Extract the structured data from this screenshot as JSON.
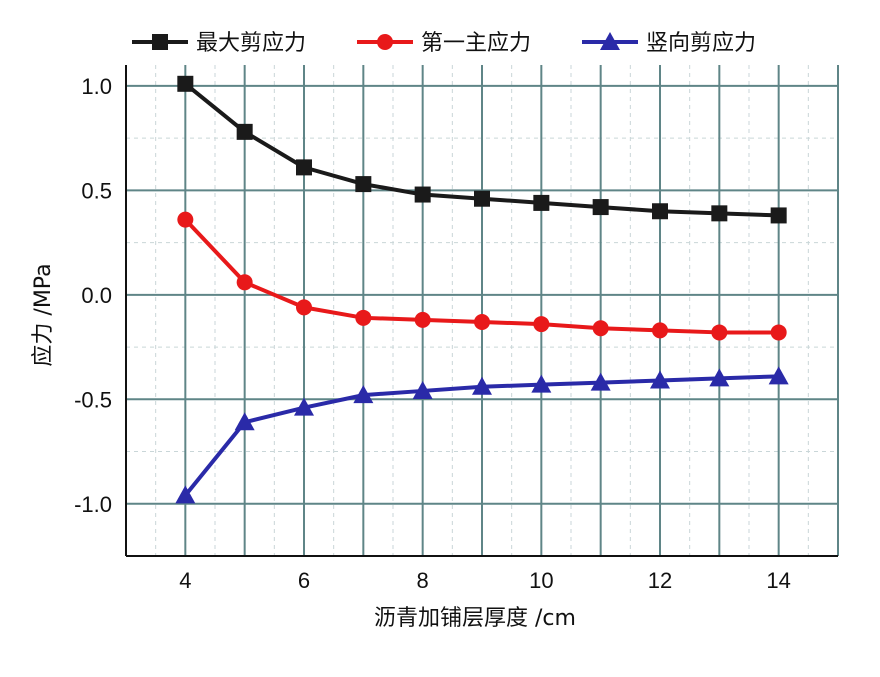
{
  "chart_data": {
    "type": "line",
    "x": [
      4,
      5,
      6,
      7,
      8,
      9,
      10,
      11,
      12,
      13,
      14
    ],
    "xlabel": "沥青加铺层厚度 /cm",
    "ylabel": "应力 /MPa",
    "xlim": [
      3,
      15
    ],
    "ylim": [
      -1.25,
      1.1
    ],
    "xticks": [
      4,
      6,
      8,
      10,
      12,
      14
    ],
    "xtick_labels": [
      "4",
      "6",
      "8",
      "10",
      "12",
      "14"
    ],
    "yticks": [
      1.0,
      0.5,
      0.0,
      -0.5,
      -1.0
    ],
    "ytick_labels": [
      "1.0",
      "0.5",
      "0.0",
      "-0.5",
      "-1.0"
    ],
    "grid": true,
    "legend_position": "top",
    "series": [
      {
        "name": "最大剪应力",
        "color": "#1a1a1a",
        "marker": "square",
        "values": [
          1.01,
          0.78,
          0.61,
          0.53,
          0.48,
          0.46,
          0.44,
          0.42,
          0.4,
          0.39,
          0.38
        ]
      },
      {
        "name": "第一主应力",
        "color": "#e8191a",
        "marker": "circle",
        "values": [
          0.36,
          0.06,
          -0.06,
          -0.11,
          -0.12,
          -0.13,
          -0.14,
          -0.16,
          -0.17,
          -0.18,
          -0.18
        ]
      },
      {
        "name": "竖向剪应力",
        "color": "#2a2aa8",
        "marker": "triangle",
        "values": [
          -0.96,
          -0.61,
          -0.54,
          -0.48,
          -0.46,
          -0.44,
          -0.43,
          -0.42,
          -0.41,
          -0.4,
          -0.39
        ]
      }
    ]
  }
}
